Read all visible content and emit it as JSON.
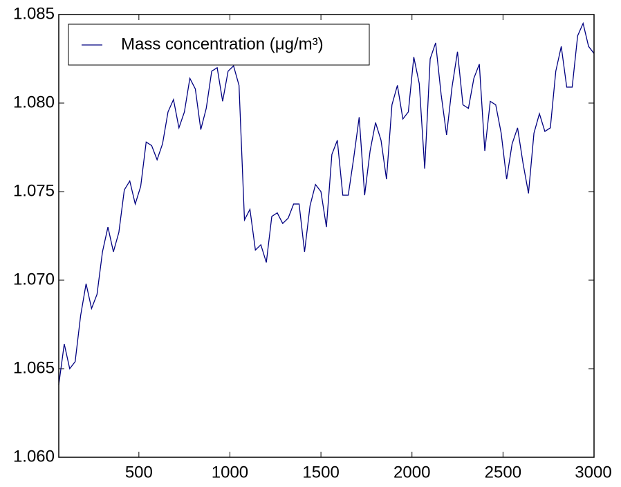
{
  "chart_data": {
    "type": "line",
    "x": [
      60,
      90,
      120,
      150,
      180,
      210,
      240,
      270,
      300,
      330,
      360,
      390,
      420,
      450,
      480,
      510,
      540,
      570,
      600,
      630,
      660,
      690,
      720,
      750,
      780,
      810,
      840,
      870,
      900,
      930,
      960,
      990,
      1020,
      1050,
      1080,
      1110,
      1140,
      1170,
      1200,
      1230,
      1260,
      1290,
      1320,
      1350,
      1380,
      1410,
      1440,
      1470,
      1500,
      1530,
      1560,
      1590,
      1620,
      1650,
      1680,
      1710,
      1740,
      1770,
      1800,
      1830,
      1860,
      1890,
      1920,
      1950,
      1980,
      2010,
      2040,
      2070,
      2100,
      2130,
      2160,
      2190,
      2220,
      2250,
      2280,
      2310,
      2340,
      2370,
      2400,
      2430,
      2460,
      2490,
      2520,
      2550,
      2580,
      2610,
      2640,
      2670,
      2700,
      2730,
      2760,
      2790,
      2820,
      2850,
      2880,
      2910,
      2940,
      2970,
      3000
    ],
    "series": [
      {
        "name": "Mass concentration (μg/m³)",
        "color": "#000080",
        "values": [
          1.0641,
          1.0664,
          1.065,
          1.0654,
          1.068,
          1.0698,
          1.0684,
          1.0692,
          1.0716,
          1.073,
          1.0716,
          1.0727,
          1.0751,
          1.0756,
          1.0743,
          1.0753,
          1.0778,
          1.0776,
          1.0768,
          1.0777,
          1.0795,
          1.0802,
          1.0786,
          1.0795,
          1.0814,
          1.0808,
          1.0785,
          1.0797,
          1.0818,
          1.082,
          1.0801,
          1.0818,
          1.0821,
          1.081,
          1.0734,
          1.074,
          1.0717,
          1.072,
          1.071,
          1.0736,
          1.0738,
          1.0732,
          1.0735,
          1.0743,
          1.0743,
          1.0716,
          1.0742,
          1.0754,
          1.075,
          1.073,
          1.0771,
          1.0779,
          1.0748,
          1.0748,
          1.0769,
          1.0792,
          1.0748,
          1.0773,
          1.0789,
          1.0779,
          1.0757,
          1.0799,
          1.081,
          1.0791,
          1.0795,
          1.0826,
          1.0811,
          1.0763,
          1.0825,
          1.0834,
          1.0805,
          1.0782,
          1.0809,
          1.0829,
          1.0799,
          1.0797,
          1.0814,
          1.0822,
          1.0773,
          1.0801,
          1.0799,
          1.0783,
          1.0757,
          1.0777,
          1.0786,
          1.0766,
          1.0749,
          1.0783,
          1.0794,
          1.0784,
          1.0786,
          1.0818,
          1.0832,
          1.0809,
          1.0809,
          1.0838,
          1.0845,
          1.0832,
          1.0828
        ]
      }
    ],
    "xlim": [
      60,
      3000
    ],
    "xticks": [
      500,
      1000,
      1500,
      2000,
      2500,
      3000
    ],
    "ylim": [
      1.06,
      1.085
    ],
    "yticks": [
      {
        "value": 1.06,
        "label": "1.060"
      },
      {
        "value": 1.065,
        "label": "1.065"
      },
      {
        "value": 1.07,
        "label": "1.070"
      },
      {
        "value": 1.075,
        "label": "1.075"
      },
      {
        "value": 1.08,
        "label": "1.080"
      },
      {
        "value": 1.085,
        "label": "1.085"
      }
    ],
    "legend": "upper left"
  }
}
